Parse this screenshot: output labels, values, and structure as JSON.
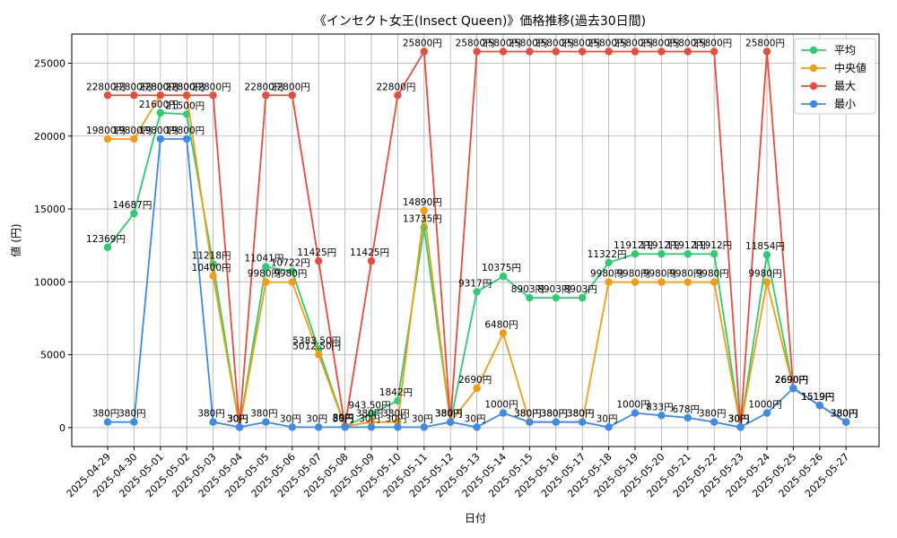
{
  "chart_data": {
    "type": "line",
    "title": "《インセクト女王(Insect Queen)》価格推移(過去30日間)",
    "xlabel": "日付",
    "ylabel": "値 (円)",
    "ylim": [
      -1300,
      27000
    ],
    "yticks": [
      0,
      5000,
      10000,
      15000,
      20000,
      25000
    ],
    "grid": true,
    "legend_position": "top-right",
    "categories": [
      "2025-04-29",
      "2025-04-30",
      "2025-05-01",
      "2025-05-02",
      "2025-05-03",
      "2025-05-04",
      "2025-05-05",
      "2025-05-06",
      "2025-05-07",
      "2025-05-08",
      "2025-05-09",
      "2025-05-10",
      "2025-05-11",
      "2025-05-12",
      "2025-05-13",
      "2025-05-14",
      "2025-05-15",
      "2025-05-16",
      "2025-05-17",
      "2025-05-18",
      "2025-05-19",
      "2025-05-20",
      "2025-05-21",
      "2025-05-22",
      "2025-05-23",
      "2025-05-24",
      "2025-05-25",
      "2025-05-26",
      "2025-05-27"
    ],
    "series": [
      {
        "name": "平均",
        "color": "#2ecc71",
        "values": [
          12369,
          14687,
          21600,
          21500,
          11218,
          30,
          11041,
          10722,
          5383.5,
          89,
          943.5,
          1842,
          13735,
          380,
          9317,
          10375,
          8903,
          8903,
          8903,
          11322,
          11912,
          11912,
          11912,
          11912,
          30,
          11854,
          2690,
          1519,
          380
        ]
      },
      {
        "name": "中央値",
        "color": "#f39c12",
        "values": [
          19800,
          19800,
          22800,
          22800,
          10400,
          30,
          9980,
          9980,
          5012.5,
          89,
          380,
          380,
          14890,
          380,
          2690,
          6480,
          380,
          380,
          380,
          9980,
          9980,
          9980,
          9980,
          9980,
          30,
          9980,
          2690,
          1519,
          380
        ]
      },
      {
        "name": "最大",
        "color": "#e74c3c",
        "values": [
          22800,
          22800,
          22800,
          22800,
          22800,
          30,
          22800,
          22800,
          11425,
          89,
          11425,
          22800,
          25800,
          380,
          25800,
          25800,
          25800,
          25800,
          25800,
          25800,
          25800,
          25800,
          25800,
          25800,
          30,
          25800,
          2690,
          1519,
          380
        ]
      },
      {
        "name": "最小",
        "color": "#3b8beb",
        "values": [
          380,
          380,
          19800,
          19800,
          380,
          30,
          380,
          30,
          30,
          30,
          30,
          30,
          30,
          380,
          30,
          1000,
          380,
          380,
          380,
          30,
          1000,
          833,
          678,
          380,
          30,
          1000,
          2690,
          1519,
          380
        ]
      }
    ]
  }
}
